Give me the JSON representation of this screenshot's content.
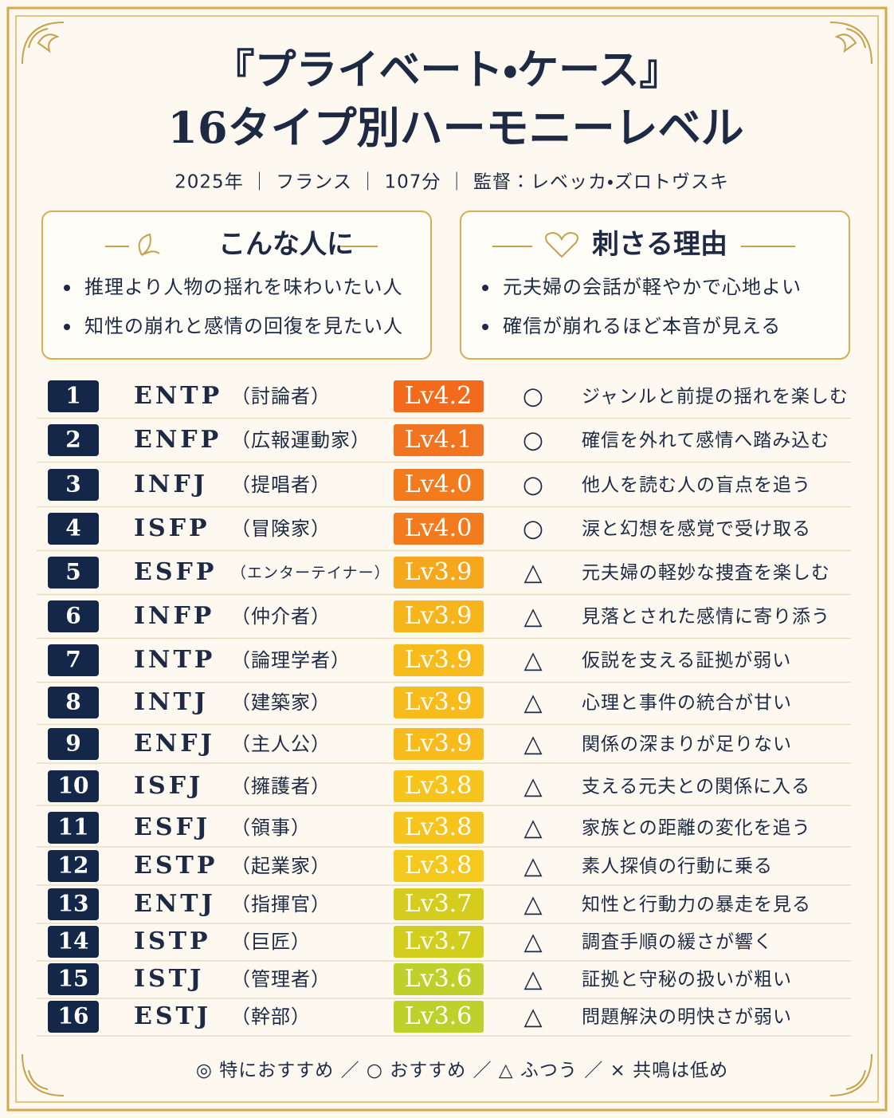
{
  "header": {
    "title_lines": [
      "『プライベート・ケース』",
      "16タイプ別ハーモニーレベル"
    ],
    "meta": "2025年 ｜ フランス ｜ 107分 ｜ 監督：レベッカ・ズロトヴスキ"
  },
  "boxes": [
    {
      "title": "こんな人に",
      "items": [
        "推理より人物の揺れを味わいたい人",
        "知性の崩れと感情の回復を見たい人"
      ]
    },
    {
      "title": "刺さる理由",
      "items": [
        "元夫婦の会話が軽やかで心地よい",
        "確信が崩れるほど本音が見える"
      ]
    }
  ],
  "table": {
    "rows": [
      {
        "rank": "1",
        "type": "ENTP",
        "role": "（討論者）",
        "level": "Lv4.2",
        "color": "#f26a1b",
        "mark": "○",
        "comment": "ジャンルと前提の揺れを楽しむ"
      },
      {
        "rank": "2",
        "type": "ENFP",
        "role": "（広報運動家）",
        "level": "Lv4.1",
        "color": "#f37420",
        "mark": "○",
        "comment": "確信を外れて感情へ踏み込む"
      },
      {
        "rank": "3",
        "type": "INFJ",
        "role": "（提唱者）",
        "level": "Lv4.0",
        "color": "#f47a1e",
        "mark": "○",
        "comment": "他人を読む人の盲点を追う"
      },
      {
        "rank": "4",
        "type": "ISFP",
        "role": "（冒険家）",
        "level": "Lv4.0",
        "color": "#f47a1e",
        "mark": "○",
        "comment": "涙と幻想を感覚で受け取る"
      },
      {
        "rank": "5",
        "type": "ESFP",
        "role": "（エンターテイナー）",
        "level": "Lv3.9",
        "color": "#f6a81c",
        "mark": "△",
        "comment": "元夫婦の軽妙な捜査を楽しむ"
      },
      {
        "rank": "6",
        "type": "INFP",
        "role": "（仲介者）",
        "level": "Lv3.9",
        "color": "#f7b51c",
        "mark": "△",
        "comment": "見落とされた感情に寄り添う"
      },
      {
        "rank": "7",
        "type": "INTP",
        "role": "（論理学者）",
        "level": "Lv3.9",
        "color": "#f7bb1c",
        "mark": "△",
        "comment": "仮説を支える証拠が弱い"
      },
      {
        "rank": "8",
        "type": "INTJ",
        "role": "（建築家）",
        "level": "Lv3.9",
        "color": "#f7bb1c",
        "mark": "△",
        "comment": "心理と事件の統合が甘い"
      },
      {
        "rank": "9",
        "type": "ENFJ",
        "role": "（主人公）",
        "level": "Lv3.9",
        "color": "#f7bb1c",
        "mark": "△",
        "comment": "関係の深まりが足りない"
      },
      {
        "rank": "10",
        "type": "ISFJ",
        "role": "（擁護者）",
        "level": "Lv3.8",
        "color": "#f6c41c",
        "mark": "△",
        "comment": "支える元夫との関係に入る"
      },
      {
        "rank": "11",
        "type": "ESFJ",
        "role": "（領事）",
        "level": "Lv3.8",
        "color": "#f6c41c",
        "mark": "△",
        "comment": "家族との距離の変化を追う"
      },
      {
        "rank": "12",
        "type": "ESTP",
        "role": "（起業家）",
        "level": "Lv3.8",
        "color": "#f4c81c",
        "mark": "△",
        "comment": "素人探偵の行動に乗る"
      },
      {
        "rank": "13",
        "type": "ENTJ",
        "role": "（指揮官）",
        "level": "Lv3.7",
        "color": "#d6cc1e",
        "mark": "△",
        "comment": "知性と行動力の暴走を見る"
      },
      {
        "rank": "14",
        "type": "ISTP",
        "role": "（巨匠）",
        "level": "Lv3.7",
        "color": "#d3cd1e",
        "mark": "△",
        "comment": "調査手順の緩さが響く"
      },
      {
        "rank": "15",
        "type": "ISTJ",
        "role": "（管理者）",
        "level": "Lv3.6",
        "color": "#bfd02a",
        "mark": "△",
        "comment": "証拠と守秘の扱いが粗い"
      },
      {
        "rank": "16",
        "type": "ESTJ",
        "role": "（幹部）",
        "level": "Lv3.6",
        "color": "#bcd12b",
        "mark": "△",
        "comment": "問題解決の明快さが弱い"
      }
    ]
  },
  "legend": "◎ 特におすすめ ／ ○ おすすめ ／ △ ふつう ／ × 共鳴は低め"
}
